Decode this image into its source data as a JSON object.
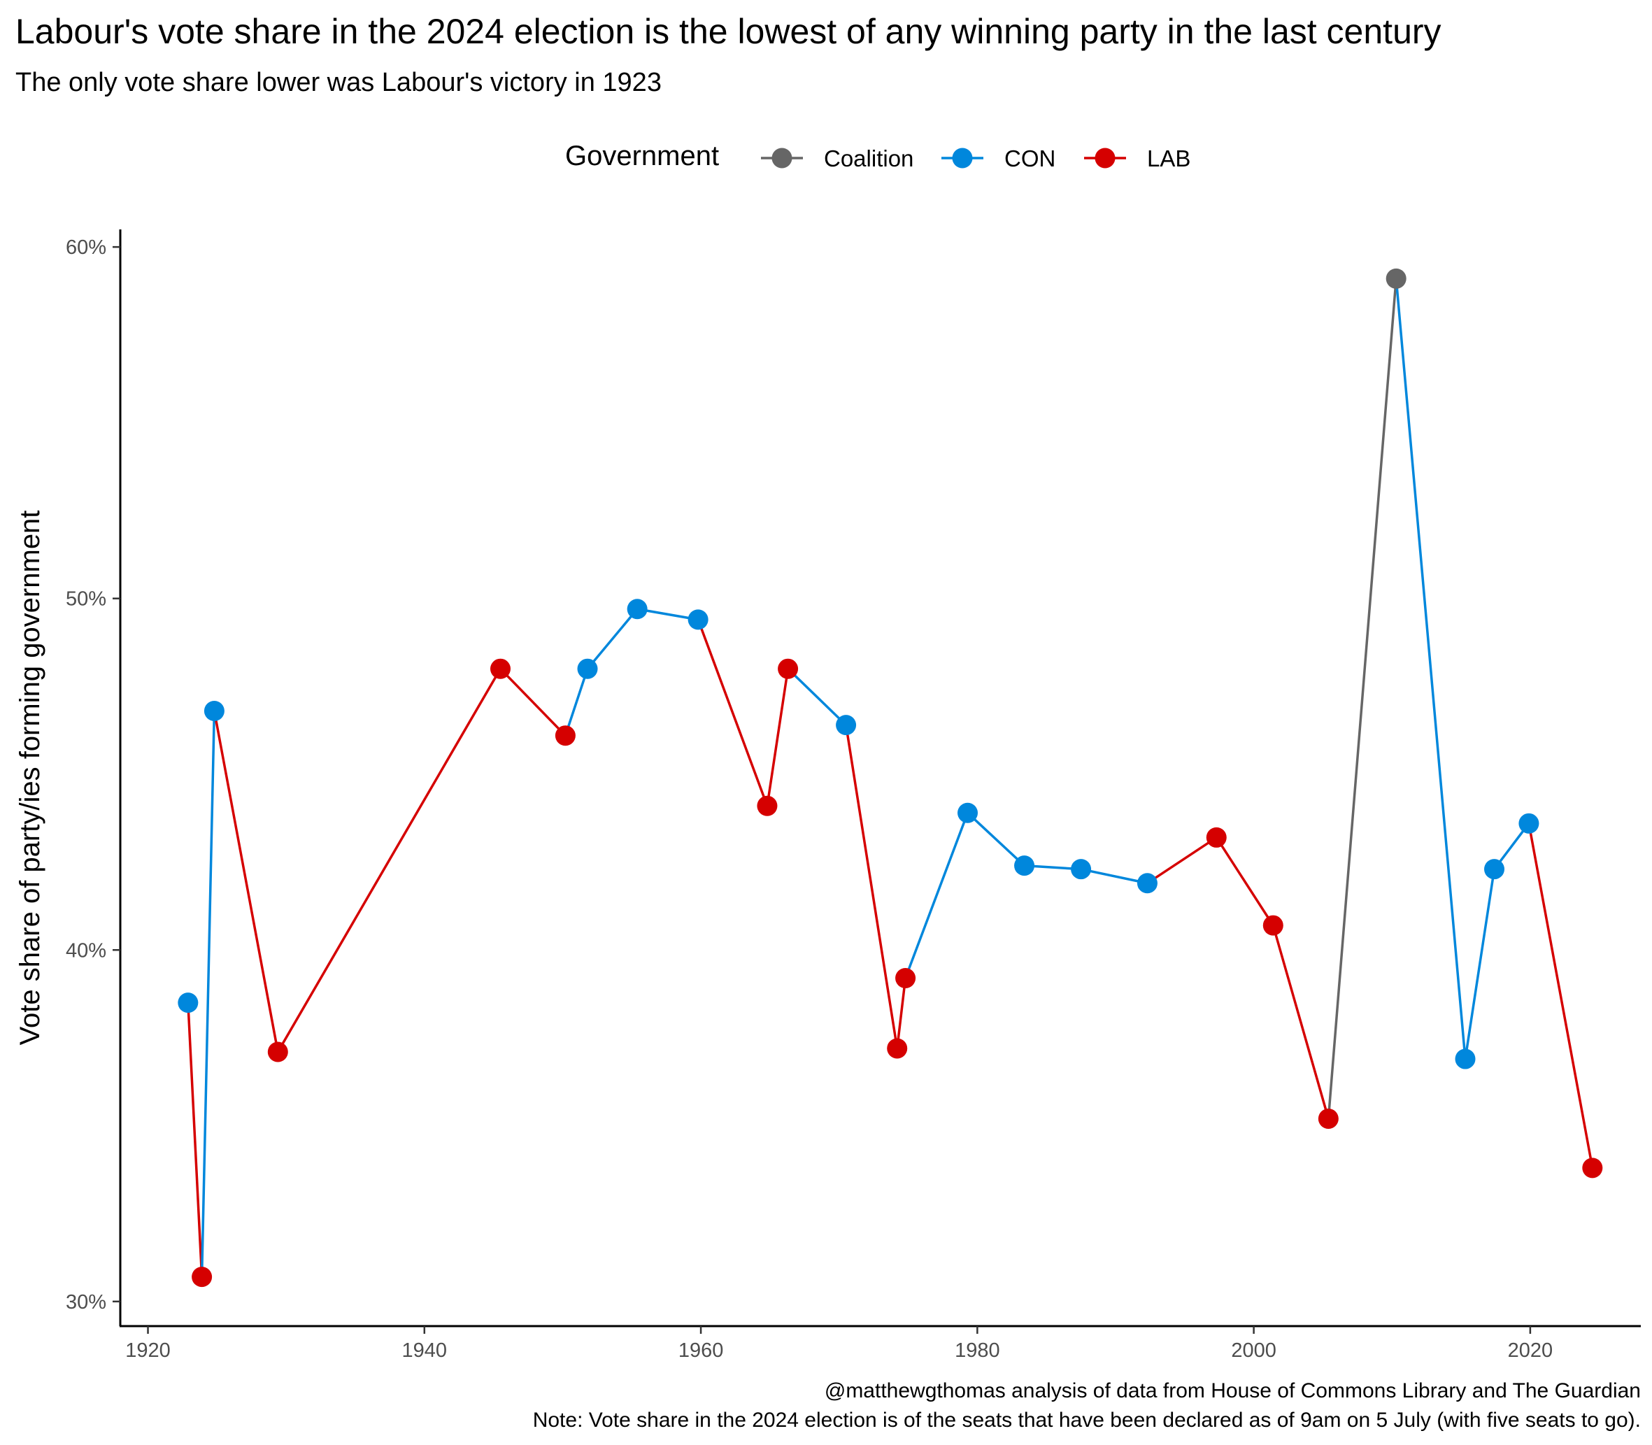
{
  "chart_data": {
    "type": "line",
    "title": "Labour's vote share in the 2024 election is the lowest of any winning party in the last century",
    "subtitle": "The only vote share lower was Labour's victory in 1923",
    "ylabel": "Vote share of party/ies forming government",
    "xlabel": "",
    "caption_lines": [
      "@matthewgthomas analysis of data from House of Commons Library and The Guardian",
      "Note: Vote share in the 2024 election is of the seats that have been declared as of 9am on 5 July (with five seats to go)."
    ],
    "legend": {
      "title": "Government",
      "position": "top",
      "items": [
        {
          "label": "Coalition",
          "color": "#666666"
        },
        {
          "label": "CON",
          "color": "#0087DC"
        },
        {
          "label": "LAB",
          "color": "#D50000"
        }
      ]
    },
    "x_axis": {
      "range": [
        1918,
        2028
      ],
      "ticks": [
        1920,
        1940,
        1960,
        1980,
        2000,
        2020
      ],
      "tick_labels": [
        "1920",
        "1940",
        "1960",
        "1980",
        "2000",
        "2020"
      ]
    },
    "y_axis": {
      "range": [
        29.3,
        60.5
      ],
      "ticks": [
        30,
        40,
        50,
        60
      ],
      "tick_labels": [
        "30%",
        "40%",
        "50%",
        "60%"
      ]
    },
    "grid": false,
    "series": [
      {
        "name": "CON",
        "color": "#0087DC"
      },
      {
        "name": "LAB",
        "color": "#D50000"
      },
      {
        "name": "Coalition",
        "color": "#666666"
      }
    ],
    "points": [
      {
        "x": 1922.9,
        "y": 38.5,
        "party": "CON"
      },
      {
        "x": 1923.9,
        "y": 30.7,
        "party": "LAB"
      },
      {
        "x": 1924.8,
        "y": 46.8,
        "party": "CON"
      },
      {
        "x": 1929.4,
        "y": 37.1,
        "party": "LAB"
      },
      {
        "x": 1945.5,
        "y": 48.0,
        "party": "LAB"
      },
      {
        "x": 1950.2,
        "y": 46.1,
        "party": "LAB"
      },
      {
        "x": 1951.8,
        "y": 48.0,
        "party": "CON"
      },
      {
        "x": 1955.4,
        "y": 49.7,
        "party": "CON"
      },
      {
        "x": 1959.8,
        "y": 49.4,
        "party": "CON"
      },
      {
        "x": 1964.8,
        "y": 44.1,
        "party": "LAB"
      },
      {
        "x": 1966.3,
        "y": 48.0,
        "party": "LAB"
      },
      {
        "x": 1970.5,
        "y": 46.4,
        "party": "CON"
      },
      {
        "x": 1974.2,
        "y": 37.2,
        "party": "LAB"
      },
      {
        "x": 1974.8,
        "y": 39.2,
        "party": "LAB"
      },
      {
        "x": 1979.3,
        "y": 43.9,
        "party": "CON"
      },
      {
        "x": 1983.4,
        "y": 42.4,
        "party": "CON"
      },
      {
        "x": 1987.5,
        "y": 42.3,
        "party": "CON"
      },
      {
        "x": 1992.3,
        "y": 41.9,
        "party": "CON"
      },
      {
        "x": 1997.3,
        "y": 43.2,
        "party": "LAB"
      },
      {
        "x": 2001.4,
        "y": 40.7,
        "party": "LAB"
      },
      {
        "x": 2005.4,
        "y": 35.2,
        "party": "LAB"
      },
      {
        "x": 2010.3,
        "y": 59.1,
        "party": "Coalition"
      },
      {
        "x": 2015.3,
        "y": 36.9,
        "party": "CON"
      },
      {
        "x": 2017.4,
        "y": 42.3,
        "party": "CON"
      },
      {
        "x": 2019.9,
        "y": 43.6,
        "party": "CON"
      },
      {
        "x": 2024.5,
        "y": 33.8,
        "party": "LAB"
      }
    ]
  }
}
